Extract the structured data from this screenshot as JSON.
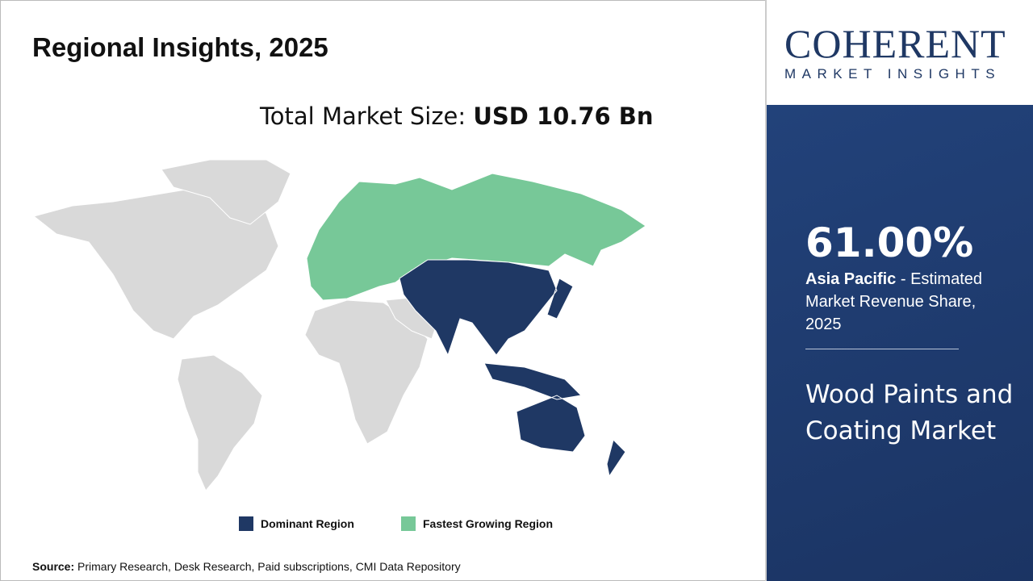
{
  "title": "Regional Insights, 2025",
  "total": {
    "label": "Total Market Size: ",
    "value": "USD 10.76 Bn"
  },
  "legend": [
    {
      "label": "Dominant Region",
      "color": "#1f3864"
    },
    {
      "label": "Fastest Growing Region",
      "color": "#77c898"
    }
  ],
  "source": {
    "label": "Source:",
    "text": " Primary Research, Desk Research, Paid subscriptions, CMI Data Repository"
  },
  "logo": {
    "big": "COHERENT",
    "small": "MARKET INSIGHTS"
  },
  "panel": {
    "share": "61.00%",
    "region": "Asia Pacific",
    "desc": " - Estimated Market Revenue Share, 2025",
    "market": "Wood Paints and Coating Market"
  },
  "map": {
    "dominant_region": "Asia Pacific",
    "fastest_growing_region": "Europe",
    "other_color": "#d9d9d9"
  }
}
